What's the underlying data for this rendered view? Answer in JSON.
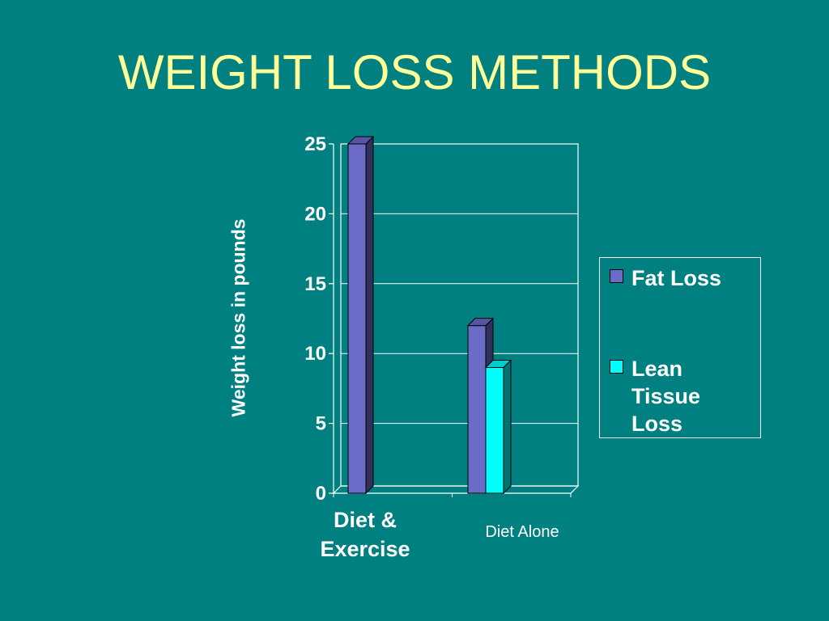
{
  "slide": {
    "title": "WEIGHT LOSS METHODS"
  },
  "colors": {
    "background": "#008080",
    "title": "#FFFF99",
    "text": "#FFFFFF",
    "fat_loss": "#6B6BC8",
    "lean_tissue_loss": "#00FFFF"
  },
  "chart_data": {
    "type": "bar",
    "title": "",
    "ylabel": "Weight loss in pounds",
    "xlabel": "",
    "ylim": [
      0,
      25
    ],
    "yticks": [
      "0",
      "5",
      "10",
      "15",
      "20",
      "25"
    ],
    "grid": true,
    "legend_position": "right",
    "categories": [
      "Diet & Exercise",
      "Diet Alone"
    ],
    "series": [
      {
        "name": "Fat Loss",
        "values": [
          25,
          12
        ]
      },
      {
        "name": "Lean Tissue Loss",
        "values": [
          0,
          9
        ]
      }
    ]
  }
}
